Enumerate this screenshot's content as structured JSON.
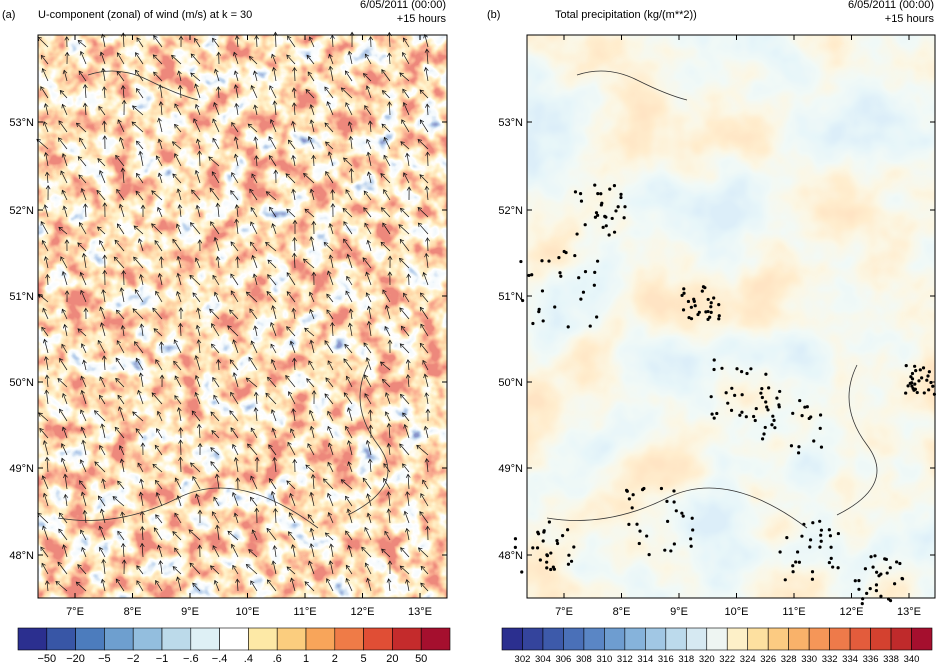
{
  "panels": [
    {
      "label": "(a)",
      "title": "U-component (zonal) of wind (m/s) at k = 30",
      "date": "6/05/2011 (00:00)",
      "lead": "+15 hours",
      "lat_labels": [
        "53°N",
        "52°N",
        "51°N",
        "50°N",
        "49°N",
        "48°N"
      ],
      "lon_labels": [
        "7°E",
        "8°E",
        "9°E",
        "10°E",
        "11°E",
        "12°E",
        "13°E"
      ],
      "colorbar": {
        "labels": [
          "−50",
          "−20",
          "−5",
          "−2",
          "−1",
          "−.6",
          "−.4",
          ".4",
          ".6",
          "1",
          "2",
          "5",
          "20",
          "50"
        ],
        "colors": [
          "#2b2f8f",
          "#3856a6",
          "#4c7cbd",
          "#6e9fcf",
          "#93bede",
          "#bcdaea",
          "#def0f5",
          "#ffffff",
          "#fde9a6",
          "#fbcd7e",
          "#f8a55a",
          "#ef7b47",
          "#e04e35",
          "#c42b2c",
          "#a50f2e"
        ]
      }
    },
    {
      "label": "(b)",
      "title": "Total precipitation (kg/(m**2))",
      "date": "6/05/2011 (00:00)",
      "lead": "+15 hours",
      "lat_labels": [
        "53°N",
        "52°N",
        "51°N",
        "50°N",
        "49°N",
        "48°N"
      ],
      "lon_labels": [
        "7°E",
        "8°E",
        "9°E",
        "10°E",
        "11°E",
        "12°E",
        "13°E"
      ],
      "colorbar": {
        "labels": [
          "302",
          "304",
          "306",
          "308",
          "310",
          "312",
          "314",
          "316",
          "318",
          "320",
          "322",
          "324",
          "326",
          "328",
          "330",
          "332",
          "334",
          "336",
          "338",
          "340"
        ],
        "colors": [
          "#2b2f8f",
          "#34449c",
          "#3d5aaa",
          "#4a70b8",
          "#5a86c5",
          "#6e9dd0",
          "#86b3db",
          "#a1c7e4",
          "#bcdaec",
          "#d6e9f2",
          "#eef5f2",
          "#fdf0c8",
          "#fde0a0",
          "#fccb82",
          "#f9b26a",
          "#f59658",
          "#ee7a4a",
          "#e35c3c",
          "#d4412f",
          "#bf2a2b",
          "#a50f2e"
        ]
      }
    }
  ]
}
